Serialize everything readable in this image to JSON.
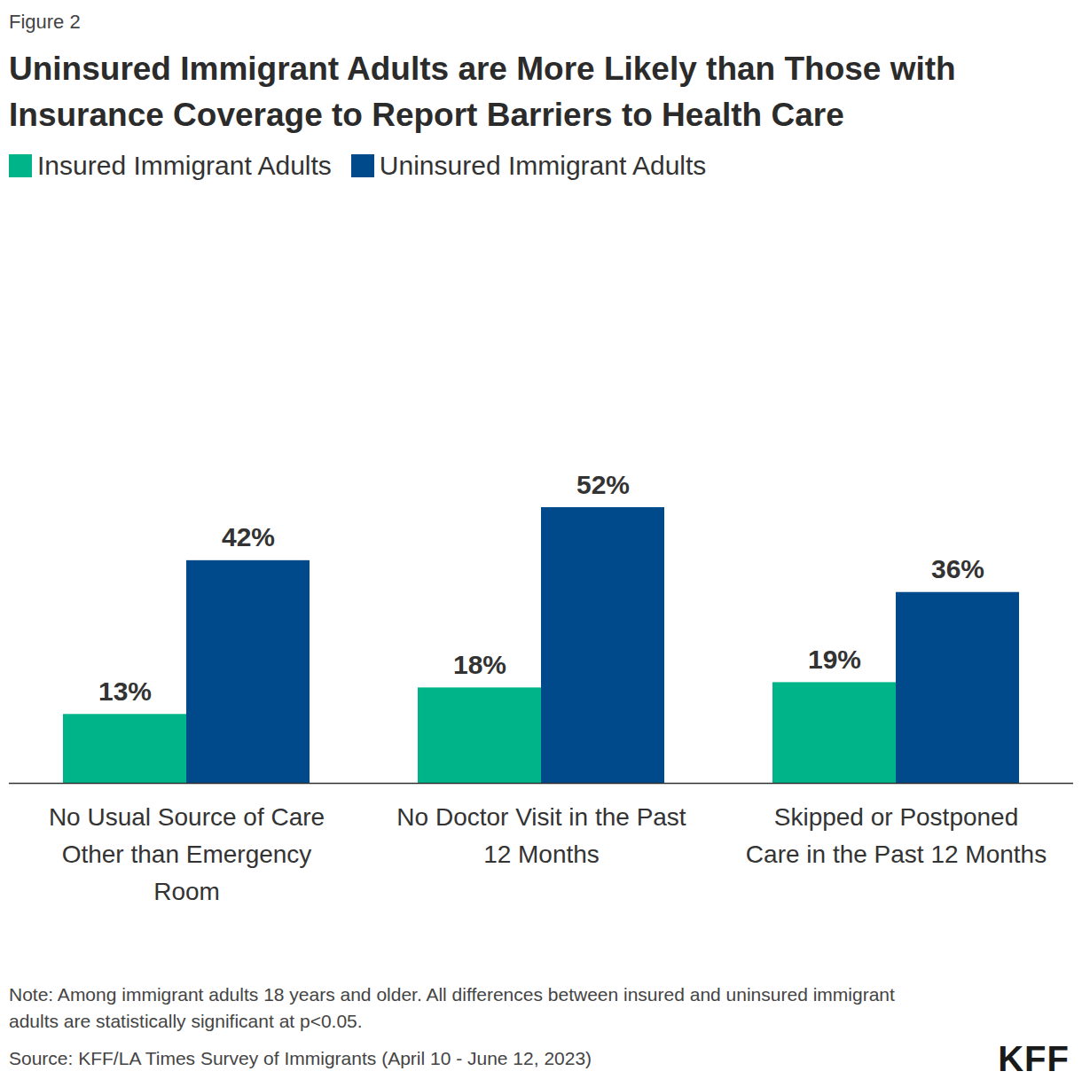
{
  "chart_data": {
    "type": "bar",
    "figure_label": "Figure 2",
    "title": "Uninsured Immigrant Adults are More Likely than Those with Insurance Coverage to Report Barriers to Health Care",
    "categories": [
      "No Usual Source of Care Other than Emergency Room",
      "No Doctor Visit in the Past 12 Months",
      "Skipped or Postponed Care in the Past 12 Months"
    ],
    "series": [
      {
        "name": "Insured Immigrant Adults",
        "color": "#00b48a",
        "values": [
          13,
          18,
          19
        ],
        "value_labels": [
          "13%",
          "18%",
          "19%"
        ]
      },
      {
        "name": "Uninsured Immigrant Adults",
        "color": "#004a8c",
        "values": [
          42,
          52,
          36
        ],
        "value_labels": [
          "42%",
          "52%",
          "36%"
        ]
      }
    ],
    "ylim": [
      0,
      100
    ],
    "tick_labels": false,
    "grid": false,
    "legend": "top-left",
    "data_labels": true,
    "note": "Note: Among immigrant adults 18 years and older. All differences between insured and uninsured immigrant adults are statistically significant at p<0.05.",
    "source": "Source: KFF/LA Times Survey of Immigrants (April 10 - June 12, 2023)",
    "logo": "KFF"
  }
}
